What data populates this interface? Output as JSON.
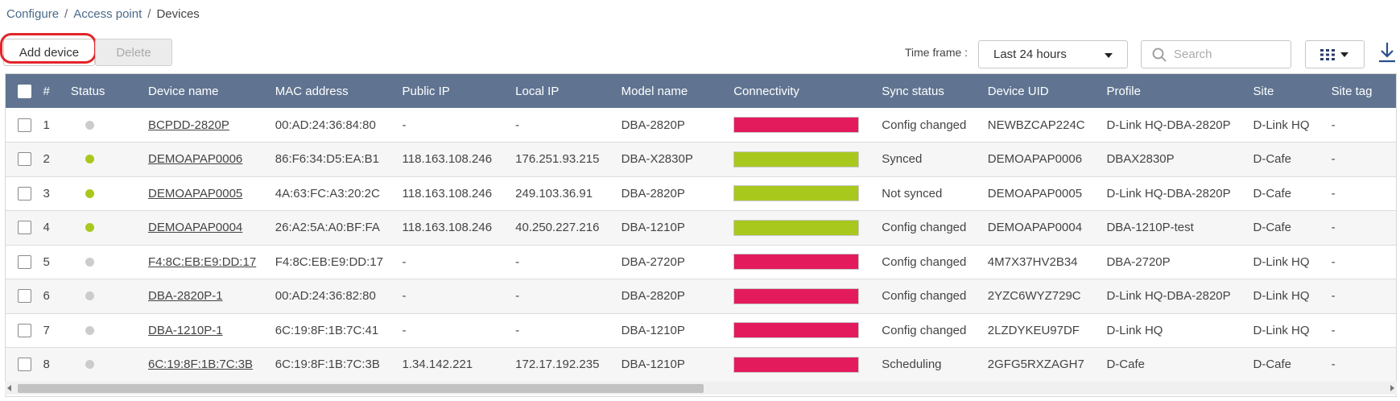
{
  "breadcrumb": {
    "items": [
      "Configure",
      "Access point",
      "Devices"
    ],
    "separator": "/"
  },
  "toolbar": {
    "add_label": "Add device",
    "delete_label": "Delete",
    "timeframe_label": "Time frame :",
    "timeframe_value": "Last 24 hours",
    "search_placeholder": "Search",
    "columns_icon": "grid-icon",
    "download_icon": "download-icon"
  },
  "colors": {
    "header_bg": "#607491",
    "online": "#a8c81e",
    "offline": "#cccccc",
    "conn_online": "#a8c81e",
    "conn_offline": "#e31b5d",
    "highlight_ring": "#e2252b"
  },
  "table": {
    "columns": [
      "#",
      "Status",
      "Device name",
      "MAC address",
      "Public IP",
      "Local IP",
      "Model name",
      "Connectivity",
      "Sync status",
      "Device UID",
      "Profile",
      "Site",
      "Site tag"
    ],
    "rows": [
      {
        "num": "1",
        "status": "offline",
        "name": "BCPDD-2820P",
        "mac": "00:AD:24:36:84:80",
        "public_ip": "-",
        "local_ip": "-",
        "model": "DBA-2820P",
        "connectivity": "offline",
        "sync": "Config changed",
        "uid": "NEWBZCAP224C",
        "profile": "D-Link HQ-DBA-2820P",
        "site": "D-Link HQ",
        "site_tag": "-"
      },
      {
        "num": "2",
        "status": "online",
        "name": "DEMOAPAP0006",
        "mac": "86:F6:34:D5:EA:B1",
        "public_ip": "118.163.108.246",
        "local_ip": "176.251.93.215",
        "model": "DBA-X2830P",
        "connectivity": "online",
        "sync": "Synced",
        "uid": "DEMOAPAP0006",
        "profile": "DBAX2830P",
        "site": "D-Cafe",
        "site_tag": "-"
      },
      {
        "num": "3",
        "status": "online",
        "name": "DEMOAPAP0005",
        "mac": "4A:63:FC:A3:20:2C",
        "public_ip": "118.163.108.246",
        "local_ip": "249.103.36.91",
        "model": "DBA-2820P",
        "connectivity": "online",
        "sync": "Not synced",
        "uid": "DEMOAPAP0005",
        "profile": "D-Link HQ-DBA-2820P",
        "site": "D-Cafe",
        "site_tag": "-"
      },
      {
        "num": "4",
        "status": "online",
        "name": "DEMOAPAP0004",
        "mac": "26:A2:5A:A0:BF:FA",
        "public_ip": "118.163.108.246",
        "local_ip": "40.250.227.216",
        "model": "DBA-1210P",
        "connectivity": "online",
        "sync": "Config changed",
        "uid": "DEMOAPAP0004",
        "profile": "DBA-1210P-test",
        "site": "D-Cafe",
        "site_tag": "-"
      },
      {
        "num": "5",
        "status": "offline",
        "name": "F4:8C:EB:E9:DD:17",
        "mac": "F4:8C:EB:E9:DD:17",
        "public_ip": "-",
        "local_ip": "-",
        "model": "DBA-2720P",
        "connectivity": "offline",
        "sync": "Config changed",
        "uid": "4M7X37HV2B34",
        "profile": "DBA-2720P",
        "site": "D-Link HQ",
        "site_tag": "-"
      },
      {
        "num": "6",
        "status": "offline",
        "name": "DBA-2820P-1",
        "mac": "00:AD:24:36:82:80",
        "public_ip": "-",
        "local_ip": "-",
        "model": "DBA-2820P",
        "connectivity": "offline",
        "sync": "Config changed",
        "uid": "2YZC6WYZ729C",
        "profile": "D-Link HQ-DBA-2820P",
        "site": "D-Link HQ",
        "site_tag": "-"
      },
      {
        "num": "7",
        "status": "offline",
        "name": "DBA-1210P-1",
        "mac": "6C:19:8F:1B:7C:41",
        "public_ip": "-",
        "local_ip": "-",
        "model": "DBA-1210P",
        "connectivity": "offline",
        "sync": "Config changed",
        "uid": "2LZDYKEU97DF",
        "profile": "D-Link HQ",
        "site": "D-Link HQ",
        "site_tag": "-"
      },
      {
        "num": "8",
        "status": "offline",
        "name": "6C:19:8F:1B:7C:3B",
        "mac": "6C:19:8F:1B:7C:3B",
        "public_ip": "1.34.142.221",
        "local_ip": "172.17.192.235",
        "model": "DBA-1210P",
        "connectivity": "offline",
        "sync": "Scheduling",
        "uid": "2GFG5RXZAGH7",
        "profile": "D-Cafe",
        "site": "D-Cafe",
        "site_tag": "-"
      }
    ]
  }
}
